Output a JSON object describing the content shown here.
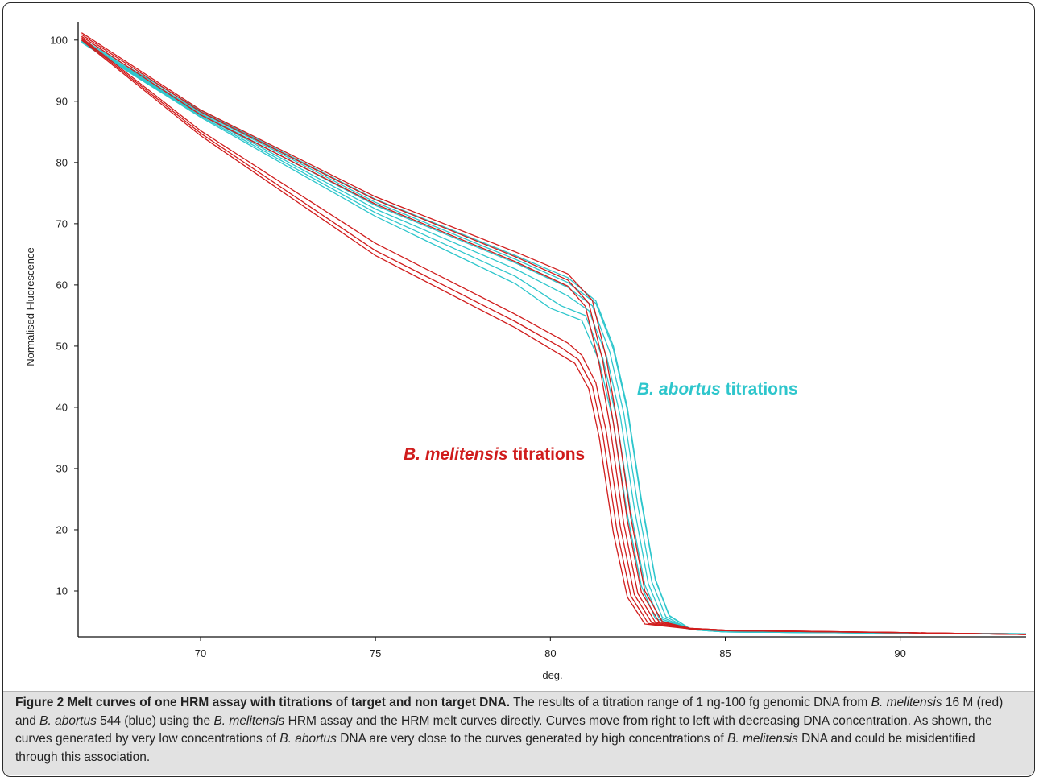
{
  "chart_data": {
    "type": "line",
    "xlabel": "deg.",
    "ylabel": "Normalised Fluorescence",
    "xlim": [
      66.5,
      93.6
    ],
    "ylim": [
      2.5,
      103
    ],
    "x_ticks": [
      70,
      75,
      80,
      85,
      90
    ],
    "y_ticks": [
      10,
      20,
      30,
      40,
      50,
      60,
      70,
      80,
      90,
      100
    ],
    "grid": false,
    "annotations": [
      {
        "italic": "B. abortus",
        "rest": " titrations",
        "color": "#2ec6cc"
      },
      {
        "italic": "B. melitensis",
        "rest": " titrations",
        "color": "#d01c1c"
      }
    ],
    "series": [
      {
        "group": "abortus",
        "color": "#2ec6cc",
        "points": [
          [
            66.6,
            100.2
          ],
          [
            70,
            88.5
          ],
          [
            75,
            74
          ],
          [
            79,
            64.8
          ],
          [
            80.5,
            61.2
          ],
          [
            81.3,
            57.4
          ],
          [
            81.8,
            50
          ],
          [
            82.2,
            40
          ],
          [
            82.6,
            25
          ],
          [
            83,
            12
          ],
          [
            83.4,
            6
          ],
          [
            84,
            3.8
          ],
          [
            85,
            3.3
          ],
          [
            90,
            3.1
          ],
          [
            93.6,
            3.0
          ]
        ]
      },
      {
        "group": "abortus",
        "color": "#2ec6cc",
        "points": [
          [
            66.6,
            100.0
          ],
          [
            70,
            88.2
          ],
          [
            75,
            73.5
          ],
          [
            79,
            64.2
          ],
          [
            80.5,
            60.4
          ],
          [
            81.3,
            57.0
          ],
          [
            81.8,
            49.5
          ],
          [
            82.2,
            39.5
          ],
          [
            82.6,
            24.5
          ],
          [
            83,
            11.8
          ],
          [
            83.4,
            5.9
          ],
          [
            84,
            3.8
          ],
          [
            85,
            3.3
          ],
          [
            90,
            3.1
          ],
          [
            93.6,
            3.0
          ]
        ]
      },
      {
        "group": "abortus",
        "color": "#2ec6cc",
        "points": [
          [
            66.6,
            99.9
          ],
          [
            70,
            88.0
          ],
          [
            75,
            73.0
          ],
          [
            79,
            63.6
          ],
          [
            80.5,
            59.6
          ],
          [
            81.2,
            56.6
          ],
          [
            81.7,
            49.0
          ],
          [
            82.1,
            39.0
          ],
          [
            82.5,
            24.0
          ],
          [
            82.9,
            11.5
          ],
          [
            83.3,
            5.8
          ],
          [
            84,
            3.7
          ],
          [
            85,
            3.3
          ],
          [
            90,
            3.1
          ],
          [
            93.6,
            3.0
          ]
        ]
      },
      {
        "group": "abortus",
        "color": "#2ec6cc",
        "points": [
          [
            66.6,
            99.8
          ],
          [
            70,
            87.8
          ],
          [
            75,
            72.4
          ],
          [
            79,
            62.6
          ],
          [
            80.5,
            58.2
          ],
          [
            81.1,
            55.8
          ],
          [
            81.6,
            48.5
          ],
          [
            82.0,
            38.5
          ],
          [
            82.4,
            23.5
          ],
          [
            82.8,
            11.2
          ],
          [
            83.2,
            5.7
          ],
          [
            84,
            3.7
          ],
          [
            85,
            3.3
          ],
          [
            90,
            3.1
          ],
          [
            93.6,
            3.0
          ]
        ]
      },
      {
        "group": "abortus",
        "color": "#2ec6cc",
        "points": [
          [
            66.6,
            99.7
          ],
          [
            70,
            87.6
          ],
          [
            75,
            71.8
          ],
          [
            79,
            61.4
          ],
          [
            80.3,
            56.6
          ],
          [
            81.0,
            55.0
          ],
          [
            81.5,
            48.0
          ],
          [
            81.9,
            38.0
          ],
          [
            82.3,
            23.0
          ],
          [
            82.7,
            11.0
          ],
          [
            83.1,
            5.6
          ],
          [
            84,
            3.7
          ],
          [
            85,
            3.3
          ],
          [
            90,
            3.1
          ],
          [
            93.6,
            3.0
          ]
        ]
      },
      {
        "group": "abortus",
        "color": "#2ec6cc",
        "points": [
          [
            66.6,
            99.6
          ],
          [
            70,
            87.4
          ],
          [
            75,
            71.2
          ],
          [
            79,
            60.2
          ],
          [
            80.0,
            56.2
          ],
          [
            80.9,
            54.2
          ],
          [
            81.4,
            47.5
          ],
          [
            81.8,
            37.5
          ],
          [
            82.2,
            22.5
          ],
          [
            82.6,
            10.8
          ],
          [
            83.0,
            5.5
          ],
          [
            84,
            3.7
          ],
          [
            85,
            3.3
          ],
          [
            90,
            3.1
          ],
          [
            93.6,
            3.0
          ]
        ]
      },
      {
        "group": "melitensis",
        "color": "#d01c1c",
        "points": [
          [
            66.6,
            101.2
          ],
          [
            70,
            88.6
          ],
          [
            75,
            74.4
          ],
          [
            79,
            65.4
          ],
          [
            80.5,
            61.8
          ],
          [
            81.2,
            57.5
          ],
          [
            81.6,
            48.0
          ],
          [
            81.9,
            38.0
          ],
          [
            82.3,
            22.0
          ],
          [
            82.7,
            10.0
          ],
          [
            83.2,
            5.0
          ],
          [
            84,
            3.9
          ],
          [
            85,
            3.6
          ],
          [
            90,
            3.2
          ],
          [
            93.6,
            2.9
          ]
        ]
      },
      {
        "group": "melitensis",
        "color": "#d01c1c",
        "points": [
          [
            66.6,
            100.9
          ],
          [
            70,
            88.3
          ],
          [
            75,
            73.9
          ],
          [
            79,
            64.6
          ],
          [
            80.5,
            60.8
          ],
          [
            81.1,
            57.0
          ],
          [
            81.5,
            47.5
          ],
          [
            81.8,
            37.5
          ],
          [
            82.2,
            21.5
          ],
          [
            82.6,
            9.8
          ],
          [
            83.1,
            5.0
          ],
          [
            84,
            3.9
          ],
          [
            85,
            3.6
          ],
          [
            90,
            3.2
          ],
          [
            93.6,
            2.9
          ]
        ]
      },
      {
        "group": "melitensis",
        "color": "#d01c1c",
        "points": [
          [
            66.6,
            100.6
          ],
          [
            70,
            87.8
          ],
          [
            75,
            73.2
          ],
          [
            79,
            63.8
          ],
          [
            80.5,
            59.8
          ],
          [
            81.0,
            56.5
          ],
          [
            81.4,
            47.0
          ],
          [
            81.7,
            37.0
          ],
          [
            82.1,
            21.0
          ],
          [
            82.5,
            9.6
          ],
          [
            83.0,
            4.9
          ],
          [
            84,
            3.9
          ],
          [
            85,
            3.6
          ],
          [
            90,
            3.2
          ],
          [
            93.6,
            2.9
          ]
        ]
      },
      {
        "group": "melitensis",
        "color": "#d01c1c",
        "points": [
          [
            66.6,
            100.4
          ],
          [
            70,
            85.2
          ],
          [
            75,
            66.8
          ],
          [
            79,
            55.2
          ],
          [
            80.5,
            50.5
          ],
          [
            80.9,
            48.5
          ],
          [
            81.3,
            44.0
          ],
          [
            81.6,
            36.0
          ],
          [
            82.0,
            20.5
          ],
          [
            82.4,
            9.4
          ],
          [
            82.9,
            4.8
          ],
          [
            84,
            3.8
          ],
          [
            85,
            3.5
          ],
          [
            90,
            3.2
          ],
          [
            93.6,
            2.9
          ]
        ]
      },
      {
        "group": "melitensis",
        "color": "#d01c1c",
        "points": [
          [
            66.6,
            100.2
          ],
          [
            70,
            84.8
          ],
          [
            75,
            65.6
          ],
          [
            79,
            54.0
          ],
          [
            80.3,
            49.8
          ],
          [
            80.8,
            47.8
          ],
          [
            81.2,
            43.5
          ],
          [
            81.5,
            35.5
          ],
          [
            81.9,
            20.0
          ],
          [
            82.3,
            9.2
          ],
          [
            82.8,
            4.7
          ],
          [
            84,
            3.8
          ],
          [
            85,
            3.5
          ],
          [
            90,
            3.2
          ],
          [
            93.6,
            2.9
          ]
        ]
      },
      {
        "group": "melitensis",
        "color": "#d01c1c",
        "points": [
          [
            66.6,
            100.0
          ],
          [
            70,
            84.4
          ],
          [
            75,
            64.8
          ],
          [
            79,
            53.0
          ],
          [
            80.2,
            48.9
          ],
          [
            80.7,
            47.2
          ],
          [
            81.1,
            43.0
          ],
          [
            81.4,
            35.0
          ],
          [
            81.8,
            19.5
          ],
          [
            82.2,
            9.0
          ],
          [
            82.7,
            4.6
          ],
          [
            84,
            3.8
          ],
          [
            85,
            3.5
          ],
          [
            90,
            3.2
          ],
          [
            93.6,
            2.9
          ]
        ]
      }
    ]
  },
  "caption": {
    "title": "Figure 2 Melt curves of one HRM assay with titrations of target and non target DNA.",
    "segments": [
      {
        "t": " The results of a titration range of 1 ng-100 fg genomic DNA from ",
        "i": false
      },
      {
        "t": "B. melitensis",
        "i": true
      },
      {
        "t": " 16 M (red) and ",
        "i": false
      },
      {
        "t": "B. abortus",
        "i": true
      },
      {
        "t": " 544 (blue) using the ",
        "i": false
      },
      {
        "t": "B. melitensis",
        "i": true
      },
      {
        "t": " HRM assay and the HRM melt curves directly. Curves move from right to left with decreasing DNA concentration. As shown, the curves generated by very low concentrations of ",
        "i": false
      },
      {
        "t": "B. abortus",
        "i": true
      },
      {
        "t": " DNA are very close to the curves generated by high concentrations of ",
        "i": false
      },
      {
        "t": "B. melitensis",
        "i": true
      },
      {
        "t": " DNA and could be misidentified through this association.",
        "i": false
      }
    ]
  }
}
